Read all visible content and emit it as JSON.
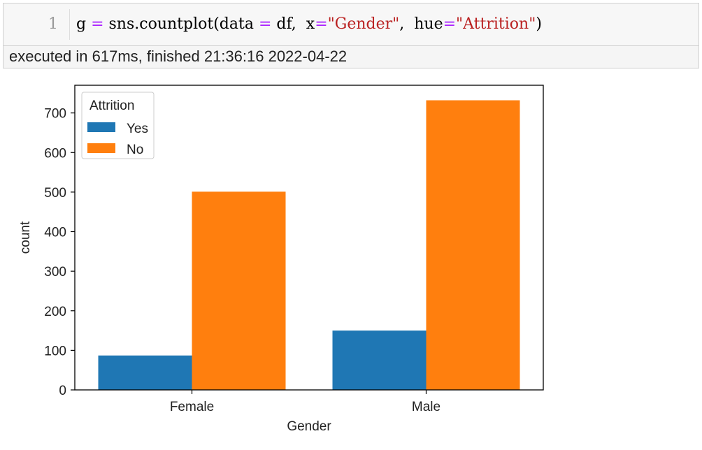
{
  "cell": {
    "line_number": "1",
    "code": {
      "t1": "g ",
      "t2": "=",
      "t3": " sns.countplot(data ",
      "t4": "=",
      "t5": " df,  x",
      "t6": "=",
      "t7": "\"Gender\"",
      "t8": ",  hue",
      "t9": "=",
      "t10": "\"Attrition\"",
      "t11": ")"
    },
    "status": "executed in 617ms, finished 21:36:16 2022-04-22"
  },
  "chart_data": {
    "type": "bar",
    "categories": [
      "Female",
      "Male"
    ],
    "series": [
      {
        "name": "Yes",
        "values": [
          87,
          150
        ],
        "color": "#1f77b4"
      },
      {
        "name": "No",
        "values": [
          501,
          732
        ],
        "color": "#ff7f0e"
      }
    ],
    "title": "",
    "xlabel": "Gender",
    "ylabel": "count",
    "ylim": [
      0,
      770
    ],
    "yticks": [
      0,
      100,
      200,
      300,
      400,
      500,
      600,
      700
    ],
    "legend": {
      "title": "Attrition",
      "placement": "top-left"
    },
    "grid": false
  }
}
